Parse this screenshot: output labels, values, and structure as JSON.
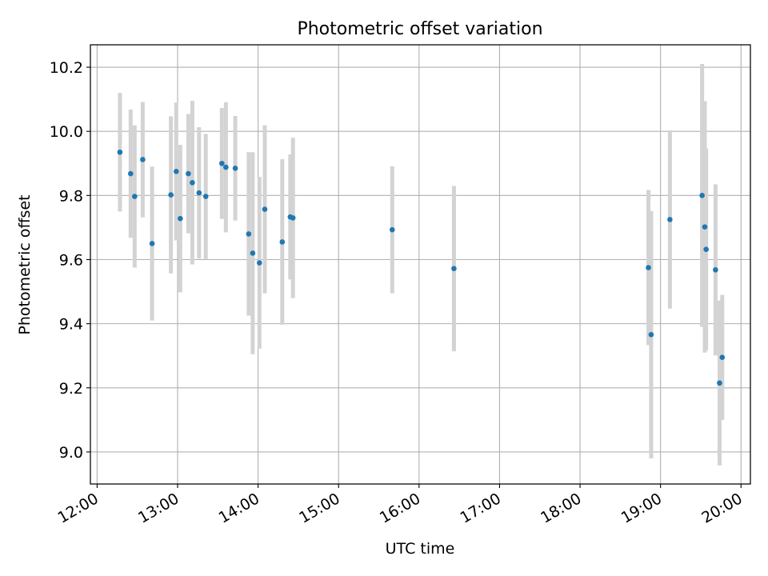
{
  "chart_data": {
    "type": "scatter",
    "title": "Photometric offset variation",
    "xlabel": "UTC time",
    "ylabel": "Photometric offset",
    "xlim": [
      "11:55",
      "20:07"
    ],
    "ylim": [
      8.9,
      10.27
    ],
    "x_ticks": [
      "12:00",
      "13:00",
      "14:00",
      "15:00",
      "16:00",
      "17:00",
      "18:00",
      "19:00",
      "20:00"
    ],
    "y_ticks": [
      "9.0",
      "9.2",
      "9.4",
      "9.6",
      "9.8",
      "10.0",
      "10.2"
    ],
    "grid": true,
    "point_color": "#1f77b4",
    "errorbar_color": "#d3d3d3",
    "points": [
      {
        "x": "12:17",
        "y": 9.935,
        "err": 0.185
      },
      {
        "x": "12:25",
        "y": 9.868,
        "err": 0.2
      },
      {
        "x": "12:28",
        "y": 9.797,
        "err": 0.222
      },
      {
        "x": "12:34",
        "y": 9.912,
        "err": 0.18
      },
      {
        "x": "12:41",
        "y": 9.65,
        "err": 0.24
      },
      {
        "x": "12:55",
        "y": 9.802,
        "err": 0.245
      },
      {
        "x": "12:59",
        "y": 9.875,
        "err": 0.215
      },
      {
        "x": "13:02",
        "y": 9.728,
        "err": 0.23
      },
      {
        "x": "13:08",
        "y": 9.868,
        "err": 0.186
      },
      {
        "x": "13:11",
        "y": 9.84,
        "err": 0.255
      },
      {
        "x": "13:16",
        "y": 9.808,
        "err": 0.205
      },
      {
        "x": "13:21",
        "y": 9.797,
        "err": 0.195
      },
      {
        "x": "13:33",
        "y": 9.9,
        "err": 0.173
      },
      {
        "x": "13:36",
        "y": 9.888,
        "err": 0.203
      },
      {
        "x": "13:43",
        "y": 9.885,
        "err": 0.163
      },
      {
        "x": "13:53",
        "y": 9.68,
        "err": 0.255
      },
      {
        "x": "13:56",
        "y": 9.62,
        "err": 0.315
      },
      {
        "x": "14:01",
        "y": 9.59,
        "err": 0.268
      },
      {
        "x": "14:05",
        "y": 9.757,
        "err": 0.262
      },
      {
        "x": "14:18",
        "y": 9.655,
        "err": 0.258
      },
      {
        "x": "14:24",
        "y": 9.733,
        "err": 0.195
      },
      {
        "x": "14:26",
        "y": 9.73,
        "err": 0.25
      },
      {
        "x": "15:40",
        "y": 9.693,
        "err": 0.198
      },
      {
        "x": "16:26",
        "y": 9.572,
        "err": 0.258
      },
      {
        "x": "18:51",
        "y": 9.575,
        "err": 0.242
      },
      {
        "x": "18:53",
        "y": 9.366,
        "err": 0.386
      },
      {
        "x": "19:07",
        "y": 9.725,
        "err": 0.278
      },
      {
        "x": "19:31",
        "y": 9.8,
        "err": 0.41
      },
      {
        "x": "19:33",
        "y": 9.702,
        "err": 0.392
      },
      {
        "x": "19:34",
        "y": 9.632,
        "err": 0.315
      },
      {
        "x": "19:41",
        "y": 9.568,
        "err": 0.267
      },
      {
        "x": "19:44",
        "y": 9.215,
        "err": 0.257
      },
      {
        "x": "19:46",
        "y": 9.295,
        "err": 0.195
      }
    ]
  }
}
